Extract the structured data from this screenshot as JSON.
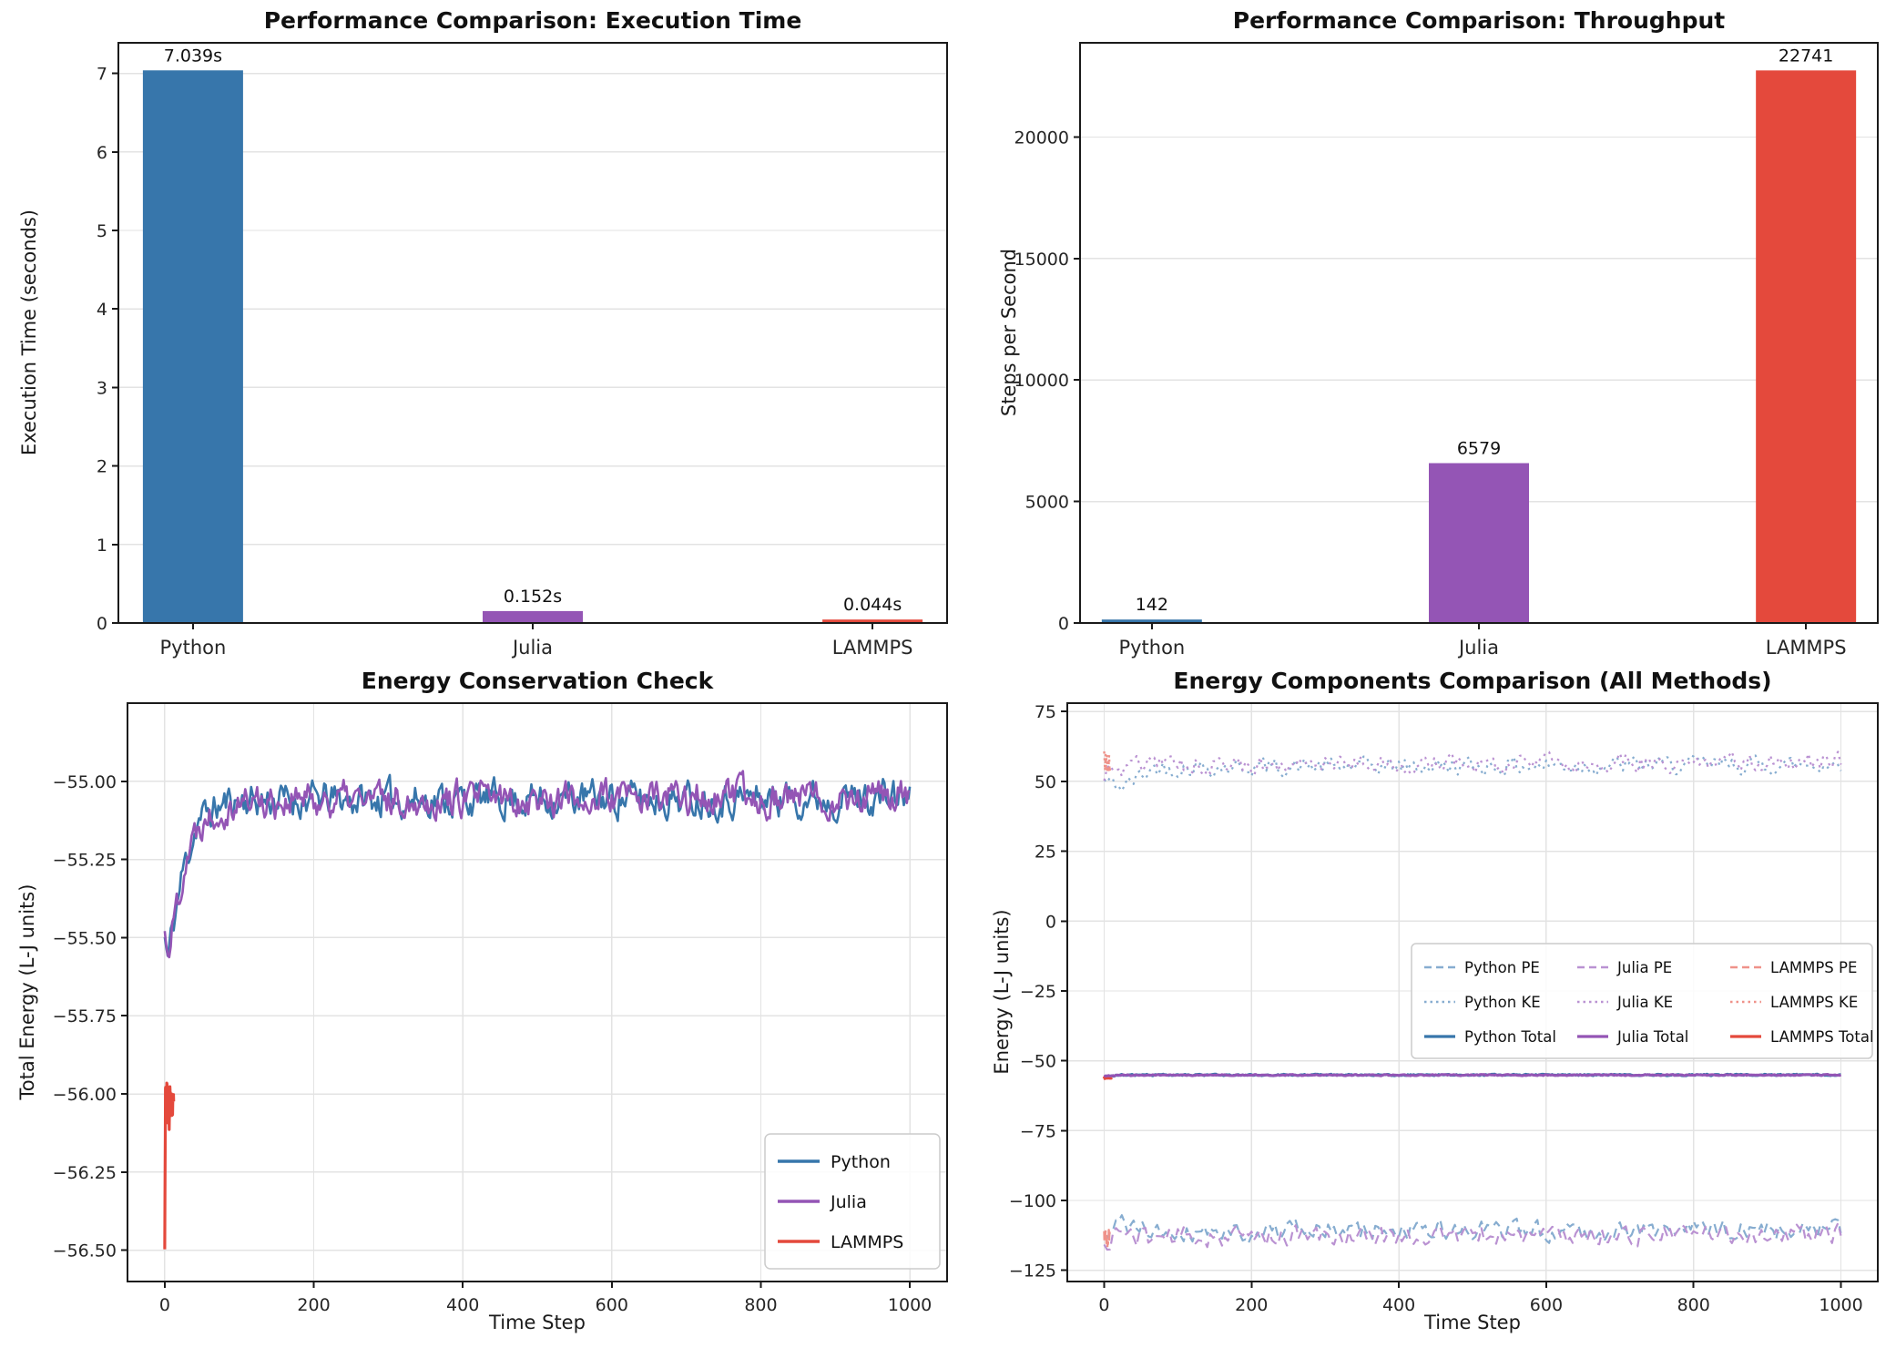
{
  "figure": {
    "background": "#ffffff"
  },
  "palette": {
    "python": "#3776ab",
    "julia": "#9455b5",
    "lammps": "#e4493c",
    "python_light": "#87add0",
    "julia_light": "#ba92d2",
    "lammps_light": "#ef928a",
    "grid": "#e3e3e3",
    "spine": "#1a1a1a",
    "tick_text": "#262626"
  },
  "chart_data": [
    {
      "type": "bar",
      "title": "Performance Comparison: Execution Time",
      "ylabel": "Execution Time (seconds)",
      "categories": [
        "Python",
        "Julia",
        "LAMMPS"
      ],
      "values": [
        7.039,
        0.152,
        0.044
      ],
      "bar_labels": [
        "7.039s",
        "0.152s",
        "0.044s"
      ],
      "bar_colors": [
        "#3776ab",
        "#9455b5",
        "#e4493c"
      ],
      "ylim": [
        0,
        7.39
      ],
      "yticks": [
        0,
        1,
        2,
        3,
        4,
        5,
        6,
        7
      ],
      "ytick_labels": [
        "0",
        "1",
        "2",
        "3",
        "4",
        "5",
        "6",
        "7"
      ],
      "grid": "y"
    },
    {
      "type": "bar",
      "title": "Performance Comparison: Throughput",
      "ylabel": "Steps per Second",
      "categories": [
        "Python",
        "Julia",
        "LAMMPS"
      ],
      "values": [
        142,
        6579,
        22741
      ],
      "bar_labels": [
        "142",
        "6579",
        "22741"
      ],
      "bar_colors": [
        "#3776ab",
        "#9455b5",
        "#e4493c"
      ],
      "ylim": [
        0,
        23878
      ],
      "yticks": [
        0,
        5000,
        10000,
        15000,
        20000
      ],
      "ytick_labels": [
        "0",
        "5000",
        "10000",
        "15000",
        "20000"
      ],
      "grid": "y"
    },
    {
      "type": "line",
      "title": "Energy Conservation Check",
      "xlabel": "Time Step",
      "ylabel": "Total Energy (L-J units)",
      "xlim": [
        -50,
        1050
      ],
      "ylim": [
        -56.6,
        -54.75
      ],
      "xticks": [
        0,
        200,
        400,
        600,
        800,
        1000
      ],
      "xtick_labels": [
        "0",
        "200",
        "400",
        "600",
        "800",
        "1000"
      ],
      "yticks": [
        -56.5,
        -56.25,
        -56.0,
        -55.75,
        -55.5,
        -55.25,
        -55.0
      ],
      "ytick_labels": [
        "−56.50",
        "−56.25",
        "−56.00",
        "−55.75",
        "−55.50",
        "−55.25",
        "−55.00"
      ],
      "grid": "both",
      "legend": {
        "position": "lower right",
        "labels": [
          "Python",
          "Julia",
          "LAMMPS"
        ]
      },
      "legend_entries": [
        {
          "label": "Python",
          "color": "#3776ab",
          "style": "solid"
        },
        {
          "label": "Julia",
          "color": "#9455b5",
          "style": "solid"
        },
        {
          "label": "LAMMPS",
          "color": "#e4493c",
          "style": "solid"
        }
      ],
      "series": [
        {
          "name": "Python",
          "color": "#3776ab",
          "style": "solid",
          "width": 2.6,
          "step": 2,
          "seed": 11,
          "noise": 0.045,
          "smooth": 0.55,
          "keyframes": [
            [
              0,
              -55.5
            ],
            [
              4,
              -55.57
            ],
            [
              10,
              -55.48
            ],
            [
              25,
              -55.28
            ],
            [
              45,
              -55.12
            ],
            [
              90,
              -55.06
            ],
            [
              1000,
              -55.05
            ]
          ]
        },
        {
          "name": "Julia",
          "color": "#9455b5",
          "style": "solid",
          "width": 2.6,
          "step": 2,
          "seed": 22,
          "noise": 0.045,
          "smooth": 0.55,
          "keyframes": [
            [
              0,
              -55.49
            ],
            [
              5,
              -55.53
            ],
            [
              12,
              -55.44
            ],
            [
              30,
              -55.22
            ],
            [
              55,
              -55.1
            ],
            [
              100,
              -55.06
            ],
            [
              1000,
              -55.05
            ]
          ]
        },
        {
          "name": "LAMMPS",
          "color": "#e4493c",
          "style": "solid",
          "width": 3.2,
          "step": 0.25,
          "seed": 33,
          "noise": 0.03,
          "smooth": 0.4,
          "xmax": 12,
          "keyframes": [
            [
              0,
              -56.5
            ],
            [
              0.5,
              -56.25
            ],
            [
              1,
              -55.97
            ],
            [
              2,
              -56.06
            ],
            [
              3,
              -55.96
            ],
            [
              4,
              -56.1
            ],
            [
              5,
              -56.0
            ],
            [
              6,
              -56.12
            ],
            [
              7,
              -55.98
            ],
            [
              8,
              -56.07
            ],
            [
              9,
              -56.01
            ],
            [
              10,
              -56.06
            ],
            [
              12,
              -56.03
            ]
          ]
        }
      ]
    },
    {
      "type": "line",
      "title": "Energy Components Comparison (All Methods)",
      "xlabel": "Time Step",
      "ylabel": "Energy (L-J units)",
      "xlim": [
        -50,
        1050
      ],
      "ylim": [
        -129,
        78
      ],
      "xticks": [
        0,
        200,
        400,
        600,
        800,
        1000
      ],
      "xtick_labels": [
        "0",
        "200",
        "400",
        "600",
        "800",
        "1000"
      ],
      "yticks": [
        -125,
        -100,
        -75,
        -50,
        -25,
        0,
        25,
        50,
        75
      ],
      "ytick_labels": [
        "−125",
        "−100",
        "−75",
        "−50",
        "−25",
        "0",
        "25",
        "50",
        "75"
      ],
      "grid": "both",
      "legend": {
        "position": "center right",
        "rows": 3,
        "cols": 3
      },
      "legend_entries": [
        {
          "label": "Python PE",
          "color": "#87add0",
          "style": "dashed"
        },
        {
          "label": "Python KE",
          "color": "#87add0",
          "style": "dotted"
        },
        {
          "label": "Python Total",
          "color": "#3776ab",
          "style": "solid"
        },
        {
          "label": "Julia PE",
          "color": "#ba92d2",
          "style": "dashed"
        },
        {
          "label": "Julia KE",
          "color": "#ba92d2",
          "style": "dotted"
        },
        {
          "label": "Julia Total",
          "color": "#9455b5",
          "style": "solid"
        },
        {
          "label": "LAMMPS PE",
          "color": "#ef928a",
          "style": "dashed"
        },
        {
          "label": "LAMMPS KE",
          "color": "#ef928a",
          "style": "dotted"
        },
        {
          "label": "LAMMPS Total",
          "color": "#e4493c",
          "style": "solid"
        }
      ],
      "series": [
        {
          "name": "Python PE",
          "color": "#87add0",
          "style": "dashed",
          "width": 2.2,
          "step": 4,
          "seed": 41,
          "noise": 3.3,
          "smooth": 0.35,
          "keyframes": [
            [
              0,
              -116
            ],
            [
              20,
              -108
            ],
            [
              60,
              -111
            ],
            [
              1000,
              -110.5
            ]
          ]
        },
        {
          "name": "Julia PE",
          "color": "#ba92d2",
          "style": "dashed",
          "width": 2.2,
          "step": 4,
          "seed": 44,
          "noise": 3.3,
          "smooth": 0.35,
          "keyframes": [
            [
              0,
              -118
            ],
            [
              15,
              -111
            ],
            [
              50,
              -113
            ],
            [
              1000,
              -112
            ]
          ]
        },
        {
          "name": "Python KE",
          "color": "#87add0",
          "style": "dotted",
          "width": 2.2,
          "step": 4,
          "seed": 42,
          "noise": 3.0,
          "smooth": 0.35,
          "keyframes": [
            [
              0,
              50
            ],
            [
              25,
              48
            ],
            [
              70,
              55
            ],
            [
              1000,
              56
            ]
          ]
        },
        {
          "name": "Julia KE",
          "color": "#ba92d2",
          "style": "dotted",
          "width": 2.2,
          "step": 4,
          "seed": 45,
          "noise": 3.0,
          "smooth": 0.35,
          "keyframes": [
            [
              0,
              53
            ],
            [
              40,
              56
            ],
            [
              1000,
              57
            ]
          ]
        },
        {
          "name": "LAMMPS PE",
          "color": "#ef928a",
          "style": "dashed",
          "width": 2.4,
          "step": 0.4,
          "seed": 47,
          "noise": 4.0,
          "smooth": 0.3,
          "xmax": 8,
          "keyframes": [
            [
              0,
              -112
            ],
            [
              8,
              -113
            ]
          ]
        },
        {
          "name": "LAMMPS KE",
          "color": "#ef928a",
          "style": "dotted",
          "width": 2.4,
          "step": 0.4,
          "seed": 48,
          "noise": 4.0,
          "smooth": 0.3,
          "xmax": 8,
          "keyframes": [
            [
              0,
              58
            ],
            [
              8,
              56
            ]
          ]
        },
        {
          "name": "Python Total",
          "color": "#3776ab",
          "style": "solid",
          "width": 3.0,
          "step": 2,
          "seed": 43,
          "noise": 0.25,
          "smooth": 0.3,
          "keyframes": [
            [
              0,
              -55.6
            ],
            [
              20,
              -55.1
            ],
            [
              1000,
              -55.05
            ]
          ]
        },
        {
          "name": "LAMMPS Total",
          "color": "#e4493c",
          "style": "solid",
          "width": 4.0,
          "step": 0.25,
          "seed": 49,
          "noise": 0.12,
          "smooth": 0.3,
          "xmax": 10,
          "keyframes": [
            [
              0,
              -56.4
            ],
            [
              1,
              -56.05
            ],
            [
              10,
              -56.0
            ]
          ]
        },
        {
          "name": "Julia Total",
          "color": "#9455b5",
          "style": "solid",
          "width": 3.0,
          "step": 2,
          "seed": 46,
          "noise": 0.2,
          "smooth": 0.3,
          "keyframes": [
            [
              0,
              -55.5
            ],
            [
              20,
              -55.15
            ],
            [
              1000,
              -55.1
            ]
          ]
        }
      ]
    }
  ]
}
